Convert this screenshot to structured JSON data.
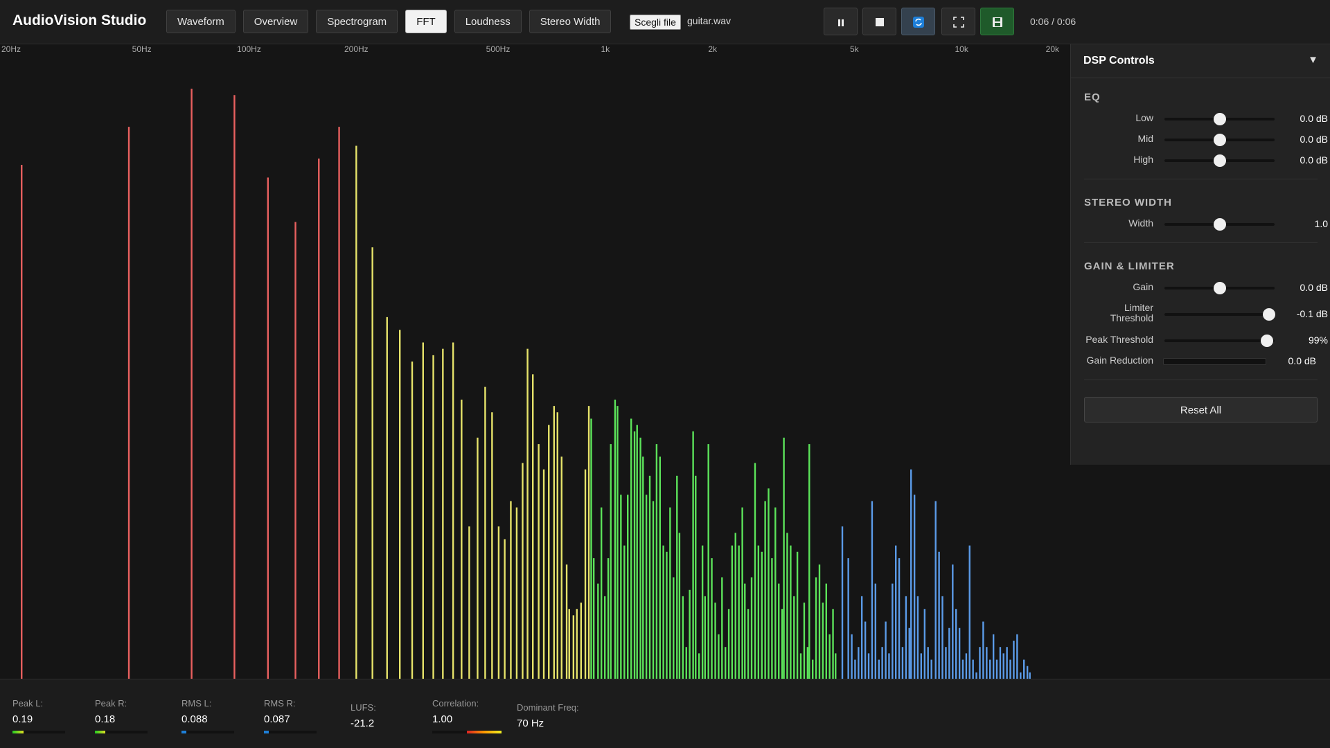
{
  "header": {
    "title": "AudioVision Studio",
    "tabs": [
      "Waveform",
      "Overview",
      "Spectrogram",
      "FFT",
      "Loudness",
      "Stereo Width"
    ],
    "active_tab": 3,
    "file_button": "Scegli file",
    "file_name": "guitar.wav",
    "time": "0:06 / 0:06"
  },
  "chart_data": {
    "type": "bar",
    "x_scale": "log",
    "xlim": [
      20,
      20000
    ],
    "xticks": [
      {
        "value": 20,
        "label": "20Hz"
      },
      {
        "value": 50,
        "label": "50Hz"
      },
      {
        "value": 100,
        "label": "100Hz"
      },
      {
        "value": 200,
        "label": "200Hz"
      },
      {
        "value": 500,
        "label": "500Hz"
      },
      {
        "value": 1000,
        "label": "1k"
      },
      {
        "value": 2000,
        "label": "2k"
      },
      {
        "value": 5000,
        "label": "5k"
      },
      {
        "value": 10000,
        "label": "10k"
      },
      {
        "value": 20000,
        "label": "20k"
      }
    ],
    "series": [
      {
        "color": "#e8605f",
        "x": [
          23,
          46,
          69,
          91,
          113,
          135,
          157,
          179
        ],
        "values": [
          0.81,
          0.87,
          0.93,
          0.92,
          0.79,
          0.72,
          0.82,
          0.87
        ]
      },
      {
        "color": "#e6e36a",
        "x": [
          200,
          222,
          244,
          265,
          287,
          308,
          329,
          350,
          374,
          395,
          415,
          438,
          460,
          481,
          502,
          522,
          543,
          564,
          586,
          605,
          626,
          650,
          672,
          694,
          718,
          734,
          754,
          779,
          792,
          814,
          832,
          855,
          879,
          899
        ],
        "values": [
          0.84,
          0.68,
          0.57,
          0.55,
          0.5,
          0.53,
          0.51,
          0.52,
          0.53,
          0.44,
          0.24,
          0.38,
          0.46,
          0.42,
          0.24,
          0.22,
          0.28,
          0.27,
          0.34,
          0.52,
          0.48,
          0.37,
          0.33,
          0.4,
          0.43,
          0.42,
          0.35,
          0.18,
          0.11,
          0.1,
          0.11,
          0.12,
          0.33,
          0.43
        ]
      },
      {
        "color": "#5ce35a",
        "x": [
          913,
          928,
          954,
          975,
          997,
          1019,
          1036,
          1065,
          1082,
          1106,
          1131,
          1156,
          1182,
          1208,
          1228,
          1255,
          1276,
          1304,
          1333,
          1363,
          1393,
          1424,
          1455,
          1487,
          1520,
          1554,
          1589,
          1615,
          1651,
          1688,
          1725,
          1764,
          1793,
          1833,
          1874,
          1905,
          1947,
          1990,
          2035,
          2080,
          2126,
          2173,
          2221,
          2269,
          2319,
          2371,
          2424,
          2464,
          2518,
          2574,
          2632,
          2690,
          2750,
          2810,
          2872,
          2936,
          3001,
          3068,
          3135,
          3171,
          3240,
          3313,
          3386,
          3460,
          3537,
          3616,
          3696,
          3737,
          3820,
          3904,
          3991,
          4079,
          4170,
          4262,
          4356,
          4429
        ],
        "values": [
          0.41,
          0.19,
          0.15,
          0.27,
          0.13,
          0.19,
          0.37,
          0.44,
          0.43,
          0.29,
          0.21,
          0.29,
          0.41,
          0.39,
          0.4,
          0.38,
          0.35,
          0.29,
          0.32,
          0.28,
          0.37,
          0.35,
          0.21,
          0.2,
          0.27,
          0.16,
          0.32,
          0.23,
          0.13,
          0.05,
          0.14,
          0.39,
          0.32,
          0.04,
          0.21,
          0.13,
          0.37,
          0.19,
          0.12,
          0.07,
          0.16,
          0.05,
          0.11,
          0.21,
          0.23,
          0.21,
          0.27,
          0.15,
          0.11,
          0.16,
          0.34,
          0.21,
          0.2,
          0.28,
          0.3,
          0.19,
          0.27,
          0.15,
          0.11,
          0.38,
          0.23,
          0.21,
          0.13,
          0.2,
          0.04,
          0.12,
          0.05,
          0.37,
          0.03,
          0.16,
          0.18,
          0.12,
          0.15,
          0.07,
          0.11,
          0.04
        ]
      },
      {
        "color": "#5b9be8",
        "x": [
          4627,
          4809,
          4917,
          5024,
          5136,
          5248,
          5366,
          5485,
          5607,
          5731,
          5860,
          5988,
          6123,
          6257,
          6396,
          6536,
          6680,
          6828,
          6981,
          7134,
          7214,
          7375,
          7535,
          7702,
          7876,
          8049,
          8230,
          8456,
          8644,
          8836,
          9033,
          9233,
          9441,
          9649,
          9865,
          10081,
          10306,
          10532,
          10766,
          11004,
          11251,
          11500,
          11759,
          12018,
          12287,
          12556,
          12836,
          13114,
          13406,
          13702,
          14009,
          14319,
          14642,
          14964,
          15299,
          15545
        ],
        "values": [
          0.24,
          0.19,
          0.07,
          0.03,
          0.05,
          0.13,
          0.09,
          0.04,
          0.28,
          0.15,
          0.03,
          0.05,
          0.09,
          0.04,
          0.15,
          0.21,
          0.19,
          0.05,
          0.13,
          0.08,
          0.33,
          0.29,
          0.13,
          0.04,
          0.11,
          0.05,
          0.03,
          0.28,
          0.2,
          0.13,
          0.05,
          0.08,
          0.18,
          0.11,
          0.08,
          0.03,
          0.04,
          0.21,
          0.03,
          0.01,
          0.05,
          0.09,
          0.05,
          0.03,
          0.07,
          0.03,
          0.05,
          0.04,
          0.05,
          0.03,
          0.06,
          0.07,
          0.01,
          0.03,
          0.02,
          0.01
        ]
      }
    ]
  },
  "dsp": {
    "title": "DSP Controls",
    "toggle": "▼",
    "eq": {
      "title": "EQ",
      "low": {
        "label": "Low",
        "value": "0.0 dB"
      },
      "mid": {
        "label": "Mid",
        "value": "0.0 dB"
      },
      "high": {
        "label": "High",
        "value": "0.0 dB"
      }
    },
    "stereo": {
      "title": "STEREO WIDTH",
      "width": {
        "label": "Width",
        "value": "1.0"
      }
    },
    "gain": {
      "title": "GAIN & LIMITER",
      "gain": {
        "label": "Gain",
        "value": "0.0 dB"
      },
      "limiter": {
        "label": "Limiter Threshold",
        "value": "-0.1 dB"
      },
      "peak": {
        "label": "Peak Threshold",
        "value": "99%"
      },
      "reduction": {
        "label": "Gain Reduction",
        "value": "0.0 dB"
      }
    },
    "reset": "Reset All"
  },
  "stats": [
    {
      "label": "Peak L:",
      "value": "0.19"
    },
    {
      "label": "Peak R:",
      "value": "0.18"
    },
    {
      "label": "RMS L:",
      "value": "0.088"
    },
    {
      "label": "RMS R:",
      "value": "0.087"
    },
    {
      "label": "LUFS:",
      "value": "-21.2"
    },
    {
      "label": "Correlation:",
      "value": "1.00"
    },
    {
      "label": "Dominant Freq:",
      "value": "70 Hz"
    }
  ]
}
